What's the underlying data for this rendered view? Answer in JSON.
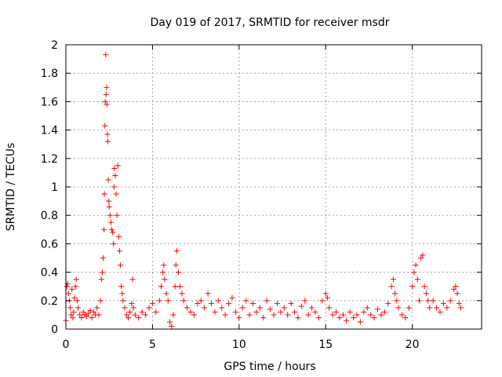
{
  "chart_data": {
    "type": "scatter",
    "title": "Day 019 of 2017, SRMTID for receiver msdr",
    "xlabel": "GPS time / hours",
    "ylabel": "SRMTID / TECUs",
    "xlim": [
      0,
      24
    ],
    "ylim": [
      0,
      2
    ],
    "xticks": [
      0,
      5,
      10,
      15,
      20
    ],
    "xtick_labels": [
      "0",
      "5",
      "10",
      "15",
      "20"
    ],
    "yticks": [
      0,
      0.2,
      0.4,
      0.6,
      0.8,
      1,
      1.2,
      1.4,
      1.6,
      1.8,
      2
    ],
    "ytick_labels": [
      "0",
      "0.2",
      "0.4",
      "0.6",
      "0.8",
      "1",
      "1.2",
      "1.4",
      "1.6",
      "1.8",
      "2"
    ],
    "grid": true,
    "marker": "+",
    "color": "#ff0000",
    "series": [
      {
        "name": "SRMTID",
        "points": [
          [
            0.0,
            0.06
          ],
          [
            0.05,
            0.3
          ],
          [
            0.1,
            0.32
          ],
          [
            0.15,
            0.25
          ],
          [
            0.2,
            0.2
          ],
          [
            0.25,
            0.15
          ],
          [
            0.3,
            0.1
          ],
          [
            0.35,
            0.28
          ],
          [
            0.4,
            0.08
          ],
          [
            0.45,
            0.12
          ],
          [
            0.5,
            0.22
          ],
          [
            0.55,
            0.3
          ],
          [
            0.6,
            0.35
          ],
          [
            0.65,
            0.2
          ],
          [
            0.7,
            0.15
          ],
          [
            0.8,
            0.1
          ],
          [
            0.9,
            0.08
          ],
          [
            1.0,
            0.12
          ],
          [
            1.1,
            0.1
          ],
          [
            1.2,
            0.09
          ],
          [
            1.3,
            0.11
          ],
          [
            1.4,
            0.13
          ],
          [
            1.5,
            0.08
          ],
          [
            1.6,
            0.12
          ],
          [
            1.7,
            0.1
          ],
          [
            1.8,
            0.15
          ],
          [
            1.9,
            0.1
          ],
          [
            2.0,
            0.2
          ],
          [
            2.05,
            0.35
          ],
          [
            2.1,
            0.4
          ],
          [
            2.15,
            0.5
          ],
          [
            2.2,
            0.7
          ],
          [
            2.22,
            0.95
          ],
          [
            2.25,
            1.43
          ],
          [
            2.27,
            1.6
          ],
          [
            2.3,
            1.93
          ],
          [
            2.32,
            1.65
          ],
          [
            2.35,
            1.7
          ],
          [
            2.37,
            1.58
          ],
          [
            2.4,
            1.37
          ],
          [
            2.42,
            1.32
          ],
          [
            2.45,
            1.05
          ],
          [
            2.48,
            0.9
          ],
          [
            2.5,
            0.86
          ],
          [
            2.55,
            0.8
          ],
          [
            2.6,
            0.75
          ],
          [
            2.65,
            0.7
          ],
          [
            2.7,
            0.68
          ],
          [
            2.75,
            0.6
          ],
          [
            2.78,
            1.0
          ],
          [
            2.8,
            1.13
          ],
          [
            2.85,
            1.08
          ],
          [
            2.9,
            0.95
          ],
          [
            2.95,
            0.8
          ],
          [
            3.0,
            1.15
          ],
          [
            3.05,
            0.65
          ],
          [
            3.1,
            0.55
          ],
          [
            3.15,
            0.45
          ],
          [
            3.2,
            0.3
          ],
          [
            3.25,
            0.25
          ],
          [
            3.3,
            0.2
          ],
          [
            3.4,
            0.15
          ],
          [
            3.5,
            0.1
          ],
          [
            3.6,
            0.08
          ],
          [
            3.7,
            0.12
          ],
          [
            3.8,
            0.18
          ],
          [
            3.85,
            0.35
          ],
          [
            3.9,
            0.15
          ],
          [
            4.0,
            0.1
          ],
          [
            4.2,
            0.08
          ],
          [
            4.4,
            0.12
          ],
          [
            4.6,
            0.1
          ],
          [
            4.8,
            0.15
          ],
          [
            5.0,
            0.18
          ],
          [
            5.2,
            0.12
          ],
          [
            5.4,
            0.2
          ],
          [
            5.5,
            0.3
          ],
          [
            5.6,
            0.4
          ],
          [
            5.65,
            0.45
          ],
          [
            5.7,
            0.35
          ],
          [
            5.8,
            0.25
          ],
          [
            5.9,
            0.2
          ],
          [
            6.0,
            0.05
          ],
          [
            6.1,
            0.02
          ],
          [
            6.2,
            0.1
          ],
          [
            6.3,
            0.3
          ],
          [
            6.35,
            0.45
          ],
          [
            6.4,
            0.55
          ],
          [
            6.5,
            0.4
          ],
          [
            6.6,
            0.3
          ],
          [
            6.7,
            0.25
          ],
          [
            6.8,
            0.2
          ],
          [
            7.0,
            0.15
          ],
          [
            7.2,
            0.12
          ],
          [
            7.4,
            0.1
          ],
          [
            7.6,
            0.18
          ],
          [
            7.8,
            0.2
          ],
          [
            8.0,
            0.15
          ],
          [
            8.2,
            0.25
          ],
          [
            8.4,
            0.18
          ],
          [
            8.6,
            0.12
          ],
          [
            8.8,
            0.2
          ],
          [
            9.0,
            0.15
          ],
          [
            9.2,
            0.1
          ],
          [
            9.4,
            0.18
          ],
          [
            9.6,
            0.22
          ],
          [
            9.8,
            0.12
          ],
          [
            10.0,
            0.08
          ],
          [
            10.2,
            0.15
          ],
          [
            10.4,
            0.2
          ],
          [
            10.6,
            0.1
          ],
          [
            10.8,
            0.18
          ],
          [
            11.0,
            0.12
          ],
          [
            11.2,
            0.15
          ],
          [
            11.4,
            0.08
          ],
          [
            11.6,
            0.2
          ],
          [
            11.8,
            0.14
          ],
          [
            12.0,
            0.1
          ],
          [
            12.2,
            0.18
          ],
          [
            12.4,
            0.12
          ],
          [
            12.6,
            0.15
          ],
          [
            12.8,
            0.1
          ],
          [
            13.0,
            0.18
          ],
          [
            13.2,
            0.12
          ],
          [
            13.4,
            0.08
          ],
          [
            13.6,
            0.16
          ],
          [
            13.8,
            0.2
          ],
          [
            14.0,
            0.1
          ],
          [
            14.2,
            0.15
          ],
          [
            14.4,
            0.12
          ],
          [
            14.6,
            0.08
          ],
          [
            14.8,
            0.2
          ],
          [
            15.0,
            0.25
          ],
          [
            15.1,
            0.22
          ],
          [
            15.2,
            0.15
          ],
          [
            15.4,
            0.1
          ],
          [
            15.6,
            0.12
          ],
          [
            15.8,
            0.08
          ],
          [
            16.0,
            0.1
          ],
          [
            16.2,
            0.06
          ],
          [
            16.4,
            0.12
          ],
          [
            16.6,
            0.08
          ],
          [
            16.8,
            0.1
          ],
          [
            17.0,
            0.05
          ],
          [
            17.2,
            0.12
          ],
          [
            17.4,
            0.15
          ],
          [
            17.6,
            0.1
          ],
          [
            17.8,
            0.08
          ],
          [
            18.0,
            0.14
          ],
          [
            18.2,
            0.1
          ],
          [
            18.4,
            0.12
          ],
          [
            18.6,
            0.18
          ],
          [
            18.8,
            0.3
          ],
          [
            18.9,
            0.35
          ],
          [
            19.0,
            0.25
          ],
          [
            19.1,
            0.2
          ],
          [
            19.2,
            0.15
          ],
          [
            19.4,
            0.1
          ],
          [
            19.6,
            0.08
          ],
          [
            19.8,
            0.15
          ],
          [
            20.0,
            0.3
          ],
          [
            20.1,
            0.4
          ],
          [
            20.2,
            0.45
          ],
          [
            20.3,
            0.35
          ],
          [
            20.4,
            0.2
          ],
          [
            20.5,
            0.5
          ],
          [
            20.6,
            0.52
          ],
          [
            20.7,
            0.3
          ],
          [
            20.8,
            0.25
          ],
          [
            20.9,
            0.2
          ],
          [
            21.0,
            0.15
          ],
          [
            21.2,
            0.2
          ],
          [
            21.4,
            0.15
          ],
          [
            21.6,
            0.12
          ],
          [
            21.8,
            0.18
          ],
          [
            22.0,
            0.15
          ],
          [
            22.2,
            0.2
          ],
          [
            22.4,
            0.28
          ],
          [
            22.5,
            0.3
          ],
          [
            22.6,
            0.25
          ],
          [
            22.7,
            0.18
          ],
          [
            22.8,
            0.15
          ]
        ]
      }
    ]
  }
}
